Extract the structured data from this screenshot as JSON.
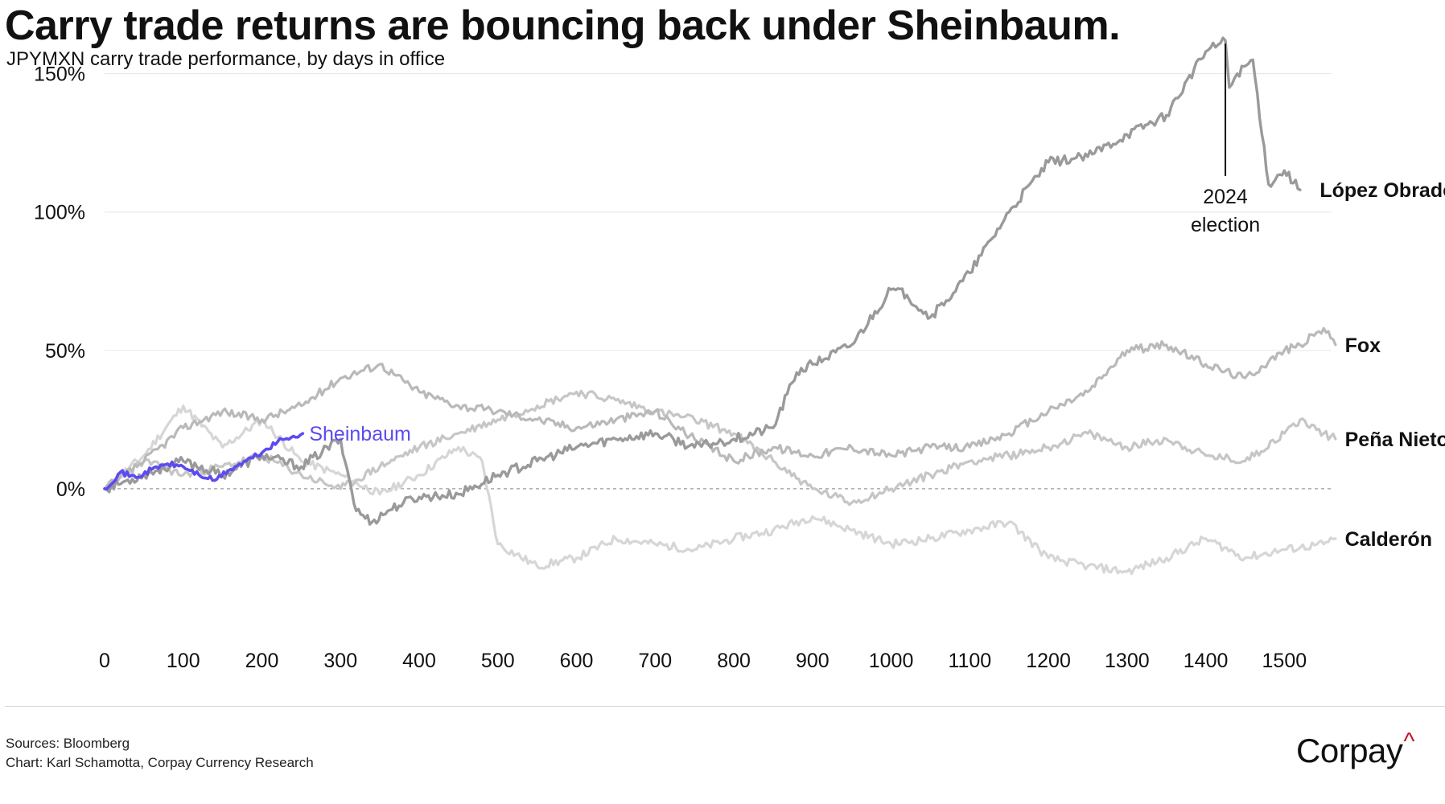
{
  "header": {
    "title": "Carry trade returns are bouncing back under Sheinbaum.",
    "subtitle": "JPYMXN carry trade performance, by days in office"
  },
  "footer": {
    "sources": "Sources: Bloomberg",
    "credit": "Chart: Karl Schamotta, Corpay Currency Research",
    "logo_text": "Corpay",
    "logo_mark": "^"
  },
  "colors": {
    "highlight": "#5b4bf0",
    "lopez_obrador": "#9a9a9a",
    "fox": "#b9b9b9",
    "pena_nieto": "#c6c6c6",
    "calderon": "#d6d6d6",
    "calderon_other": "#cfcfcf",
    "logo_accent": "#c8102e"
  },
  "chart_data": {
    "type": "line",
    "title": "Carry trade returns are bouncing back under Sheinbaum.",
    "subtitle": "JPYMXN carry trade performance, by days in office",
    "xlabel": "",
    "ylabel": "",
    "xlim": [
      0,
      1560
    ],
    "ylim": [
      -50,
      165
    ],
    "x_ticks": [
      0,
      100,
      200,
      300,
      400,
      500,
      600,
      700,
      800,
      900,
      1000,
      1100,
      1200,
      1300,
      1400,
      1500
    ],
    "y_ticks": [
      0,
      50,
      100,
      150
    ],
    "y_tick_labels": [
      "0%",
      "50%",
      "100%",
      "150%"
    ],
    "grid": "horizontal",
    "zero_line": "dashed",
    "series": [
      {
        "name": "López Obrador",
        "x": [
          0,
          50,
          100,
          150,
          200,
          250,
          300,
          320,
          340,
          360,
          380,
          400,
          450,
          500,
          550,
          600,
          650,
          700,
          750,
          800,
          850,
          880,
          900,
          950,
          1000,
          1020,
          1050,
          1070,
          1100,
          1150,
          1200,
          1250,
          1300,
          1350,
          1400,
          1425,
          1430,
          1440,
          1460,
          1480,
          1500,
          1520
        ],
        "y": [
          0,
          5,
          10,
          5,
          12,
          8,
          18,
          -8,
          -12,
          -8,
          -5,
          -3,
          -2,
          5,
          10,
          15,
          18,
          20,
          15,
          18,
          22,
          42,
          45,
          52,
          72,
          70,
          62,
          68,
          78,
          100,
          118,
          120,
          128,
          135,
          158,
          162,
          145,
          150,
          155,
          110,
          115,
          108
        ]
      },
      {
        "name": "Fox",
        "x": [
          0,
          50,
          100,
          150,
          200,
          250,
          300,
          350,
          400,
          450,
          500,
          550,
          600,
          650,
          700,
          750,
          800,
          850,
          900,
          950,
          1000,
          1050,
          1100,
          1150,
          1200,
          1250,
          1300,
          1350,
          1400,
          1450,
          1500,
          1520,
          1550,
          1565
        ],
        "y": [
          0,
          10,
          22,
          28,
          25,
          30,
          40,
          45,
          35,
          30,
          28,
          25,
          22,
          25,
          28,
          18,
          10,
          15,
          12,
          15,
          12,
          15,
          15,
          20,
          28,
          35,
          50,
          52,
          45,
          40,
          50,
          52,
          58,
          52
        ]
      },
      {
        "name": "Peña Nieto",
        "x": [
          0,
          50,
          100,
          150,
          200,
          250,
          300,
          350,
          400,
          450,
          500,
          550,
          600,
          650,
          700,
          750,
          800,
          850,
          900,
          950,
          1000,
          1050,
          1100,
          1150,
          1200,
          1250,
          1300,
          1350,
          1400,
          1450,
          1500,
          1520,
          1550,
          1565
        ],
        "y": [
          0,
          10,
          5,
          8,
          12,
          5,
          0,
          8,
          15,
          20,
          25,
          30,
          35,
          32,
          28,
          25,
          20,
          10,
          0,
          -5,
          0,
          5,
          10,
          12,
          15,
          20,
          15,
          18,
          12,
          10,
          20,
          25,
          20,
          18
        ]
      },
      {
        "name": "Calderón",
        "x": [
          0,
          50,
          100,
          150,
          200,
          250,
          300,
          350,
          400,
          450,
          480,
          500,
          550,
          600,
          650,
          700,
          750,
          800,
          850,
          900,
          950,
          1000,
          1050,
          1100,
          1150,
          1200,
          1250,
          1300,
          1350,
          1400,
          1450,
          1500,
          1550,
          1565
        ],
        "y": [
          0,
          12,
          30,
          15,
          25,
          10,
          5,
          -2,
          5,
          15,
          10,
          -20,
          -28,
          -25,
          -18,
          -20,
          -22,
          -18,
          -15,
          -10,
          -15,
          -20,
          -18,
          -15,
          -12,
          -25,
          -28,
          -30,
          -25,
          -18,
          -25,
          -22,
          -20,
          -18
        ]
      },
      {
        "name": "Sheinbaum",
        "x": [
          0,
          20,
          40,
          60,
          80,
          100,
          120,
          140,
          160,
          180,
          200,
          220,
          240,
          252
        ],
        "y": [
          0,
          6,
          4,
          7,
          9,
          8,
          5,
          3,
          7,
          10,
          13,
          17,
          19,
          20
        ]
      }
    ],
    "annotations": [
      {
        "text": "2024",
        "x": 1425
      },
      {
        "text": "election",
        "x": 1425
      }
    ]
  }
}
